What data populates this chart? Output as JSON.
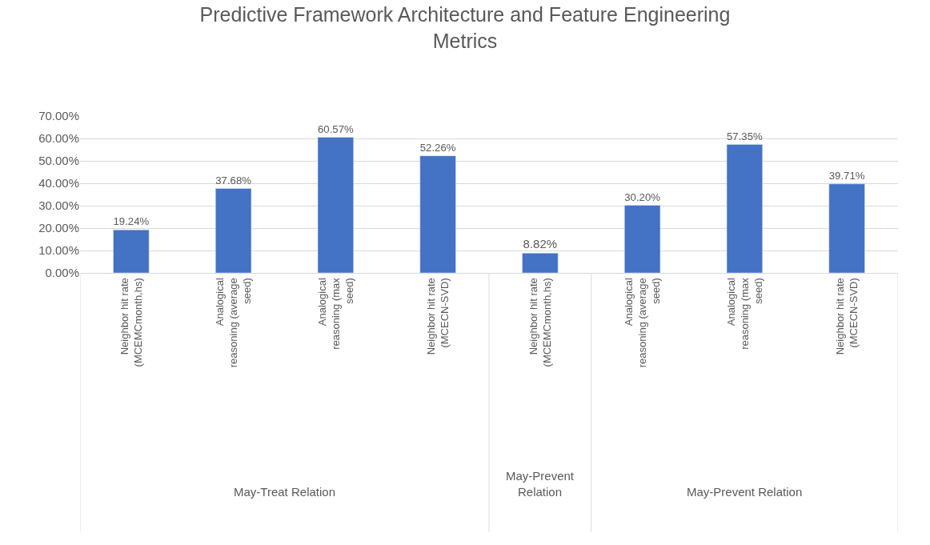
{
  "chart_data": {
    "type": "bar",
    "title": "Predictive Framework Architecture and Feature Engineering Metrics",
    "categories": [
      "Neighbor hit rate (MCEMCmonth,hs)",
      "Analogical reasoning (average seed)",
      "Analogical reasoning (max seed)",
      "Neighbor hit rate (MCECN-SVD)",
      "Neighbor hit rate (MCEMCmonth,hs)",
      "Analogical reasoning (average seed)",
      "Analogical reasoning (max seed)",
      "Neighbor hit rate (MCECN-SVD)"
    ],
    "values": [
      19.24,
      37.68,
      60.57,
      52.26,
      8.82,
      30.2,
      57.35,
      39.71
    ],
    "value_labels": [
      "19.24%",
      "37.68%",
      "60.57%",
      "52.26%",
      "8.82%",
      "30.20%",
      "57.35%",
      "39.71%"
    ],
    "color": "#4472c4",
    "ylim": [
      0,
      70
    ],
    "yticks": [
      {
        "value": 0,
        "label": "0.00%"
      },
      {
        "value": 10,
        "label": "10.00%"
      },
      {
        "value": 20,
        "label": "20.00%"
      },
      {
        "value": 30,
        "label": "30.00%"
      },
      {
        "value": 40,
        "label": "40.00%"
      },
      {
        "value": 50,
        "label": "50.00%"
      },
      {
        "value": 60,
        "label": "60.00%"
      },
      {
        "value": 70,
        "label": "70.00%"
      }
    ],
    "annotations": [
      "May-Treat Relation",
      "May-Prevent Relation",
      "May-Prevent Relation"
    ],
    "grid": "y",
    "legend": false
  }
}
